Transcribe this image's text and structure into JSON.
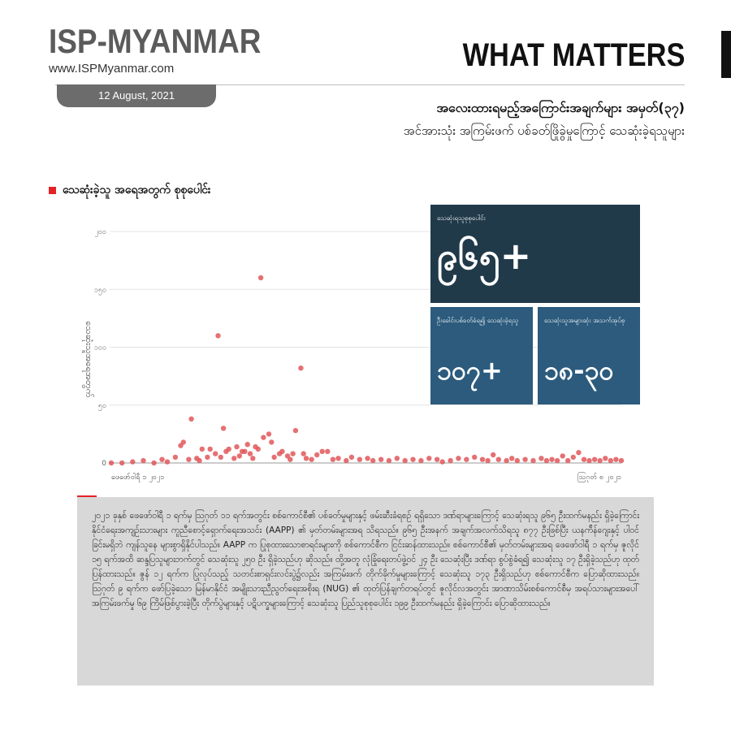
{
  "brand": {
    "name": "ISP-MYANMAR",
    "url": "www.ISPMyanmar.com",
    "date": "12 August, 2021"
  },
  "series_label": "WHAT MATTERS",
  "title": "အလေးထားရမည့်အကြောင်းအချက်များ အမှတ်(၃၇)",
  "subtitle": "အင်အားသုံး အကြမ်းဖက် ပစ်ခတ်ဖြိုခွဲမှုကြောင့် သေဆုံးခဲ့ရသူများ",
  "section_title": "သေဆုံးခဲ့သူ အရေအတွက် စုစုပေါင်း",
  "stats": {
    "total": {
      "label": "သေဆုံးရသူစုစုပေါင်း",
      "value": "၉၆၅+"
    },
    "headshot": {
      "label": "ဦးခေါင်းပစ်ခတ်ခံရ၍ သေဆုံးခဲ့ရသူ",
      "value": "၁၀၇+"
    },
    "age": {
      "label": "သေဆုံးသူအများဆုံး အသက်အုပ်စု",
      "value": "၁၈-၃၀"
    }
  },
  "chart_data": {
    "type": "scatter",
    "ylabel": "သေဆုံးသူအရေအတွက်",
    "ylim": [
      0,
      200
    ],
    "yticks": [
      0,
      50,
      100,
      150,
      200
    ],
    "ytick_labels": [
      "0",
      "၅၀",
      "၁၀၀",
      "၁၅၀",
      "၂၀၀"
    ],
    "xlim": [
      "2021-02-01",
      "2021-08-11"
    ],
    "xtick_labels": [
      "ဖေဖော်ဝါရီ ၁ ၂၀၂၁",
      "ဩဂုတ် ၈ ၂၀၂၁"
    ],
    "color": "#e0575b",
    "points": [
      {
        "x": "2021-02-01",
        "y": 0
      },
      {
        "x": "2021-02-05",
        "y": 0
      },
      {
        "x": "2021-02-09",
        "y": 1
      },
      {
        "x": "2021-02-13",
        "y": 2
      },
      {
        "x": "2021-02-17",
        "y": 0
      },
      {
        "x": "2021-02-20",
        "y": 3
      },
      {
        "x": "2021-02-22",
        "y": 1
      },
      {
        "x": "2021-02-25",
        "y": 5
      },
      {
        "x": "2021-02-27",
        "y": 15
      },
      {
        "x": "2021-02-28",
        "y": 18
      },
      {
        "x": "2021-03-02",
        "y": 3
      },
      {
        "x": "2021-03-03",
        "y": 38
      },
      {
        "x": "2021-03-05",
        "y": 4
      },
      {
        "x": "2021-03-06",
        "y": 2
      },
      {
        "x": "2021-03-07",
        "y": 12
      },
      {
        "x": "2021-03-09",
        "y": 5
      },
      {
        "x": "2021-03-10",
        "y": 12
      },
      {
        "x": "2021-03-12",
        "y": 8
      },
      {
        "x": "2021-03-13",
        "y": 110
      },
      {
        "x": "2021-03-14",
        "y": 5
      },
      {
        "x": "2021-03-15",
        "y": 30
      },
      {
        "x": "2021-03-16",
        "y": 10
      },
      {
        "x": "2021-03-17",
        "y": 12
      },
      {
        "x": "2021-03-19",
        "y": 4
      },
      {
        "x": "2021-03-20",
        "y": 14
      },
      {
        "x": "2021-03-21",
        "y": 6
      },
      {
        "x": "2021-03-22",
        "y": 10
      },
      {
        "x": "2021-03-23",
        "y": 10
      },
      {
        "x": "2021-03-24",
        "y": 16
      },
      {
        "x": "2021-03-25",
        "y": 8
      },
      {
        "x": "2021-03-26",
        "y": 4
      },
      {
        "x": "2021-03-27",
        "y": 14
      },
      {
        "x": "2021-03-28",
        "y": 12
      },
      {
        "x": "2021-03-29",
        "y": 160
      },
      {
        "x": "2021-03-30",
        "y": 22
      },
      {
        "x": "2021-04-01",
        "y": 25
      },
      {
        "x": "2021-04-02",
        "y": 18
      },
      {
        "x": "2021-04-03",
        "y": 5
      },
      {
        "x": "2021-04-05",
        "y": 8
      },
      {
        "x": "2021-04-06",
        "y": 10
      },
      {
        "x": "2021-04-08",
        "y": 6
      },
      {
        "x": "2021-04-09",
        "y": 3
      },
      {
        "x": "2021-04-10",
        "y": 8
      },
      {
        "x": "2021-04-11",
        "y": 28
      },
      {
        "x": "2021-04-13",
        "y": 82
      },
      {
        "x": "2021-04-14",
        "y": 8
      },
      {
        "x": "2021-04-15",
        "y": 4
      },
      {
        "x": "2021-04-17",
        "y": 3
      },
      {
        "x": "2021-04-19",
        "y": 7
      },
      {
        "x": "2021-04-21",
        "y": 10
      },
      {
        "x": "2021-04-23",
        "y": 10
      },
      {
        "x": "2021-04-25",
        "y": 3
      },
      {
        "x": "2021-04-27",
        "y": 4
      },
      {
        "x": "2021-04-30",
        "y": 2
      },
      {
        "x": "2021-05-02",
        "y": 5
      },
      {
        "x": "2021-05-05",
        "y": 3
      },
      {
        "x": "2021-05-08",
        "y": 4
      },
      {
        "x": "2021-05-10",
        "y": 2
      },
      {
        "x": "2021-05-13",
        "y": 3
      },
      {
        "x": "2021-05-16",
        "y": 2
      },
      {
        "x": "2021-05-19",
        "y": 4
      },
      {
        "x": "2021-05-22",
        "y": 2
      },
      {
        "x": "2021-05-25",
        "y": 3
      },
      {
        "x": "2021-05-28",
        "y": 2
      },
      {
        "x": "2021-05-31",
        "y": 4
      },
      {
        "x": "2021-06-03",
        "y": 3
      },
      {
        "x": "2021-06-05",
        "y": 1
      },
      {
        "x": "2021-06-08",
        "y": 2
      },
      {
        "x": "2021-06-11",
        "y": 4
      },
      {
        "x": "2021-06-14",
        "y": 3
      },
      {
        "x": "2021-06-17",
        "y": 5
      },
      {
        "x": "2021-06-20",
        "y": 3
      },
      {
        "x": "2021-06-22",
        "y": 2
      },
      {
        "x": "2021-06-24",
        "y": 7
      },
      {
        "x": "2021-06-26",
        "y": 3
      },
      {
        "x": "2021-06-29",
        "y": 2
      },
      {
        "x": "2021-07-01",
        "y": 4
      },
      {
        "x": "2021-07-03",
        "y": 2
      },
      {
        "x": "2021-07-06",
        "y": 3
      },
      {
        "x": "2021-07-09",
        "y": 2
      },
      {
        "x": "2021-07-12",
        "y": 4
      },
      {
        "x": "2021-07-14",
        "y": 2
      },
      {
        "x": "2021-07-16",
        "y": 3
      },
      {
        "x": "2021-07-18",
        "y": 2
      },
      {
        "x": "2021-07-20",
        "y": 6
      },
      {
        "x": "2021-07-22",
        "y": 2
      },
      {
        "x": "2021-07-24",
        "y": 5
      },
      {
        "x": "2021-07-26",
        "y": 9
      },
      {
        "x": "2021-07-28",
        "y": 3
      },
      {
        "x": "2021-07-30",
        "y": 2
      },
      {
        "x": "2021-08-01",
        "y": 3
      },
      {
        "x": "2021-08-03",
        "y": 2
      },
      {
        "x": "2021-08-05",
        "y": 4
      },
      {
        "x": "2021-08-07",
        "y": 2
      },
      {
        "x": "2021-08-09",
        "y": 3
      },
      {
        "x": "2021-08-11",
        "y": 2
      }
    ]
  },
  "body_text": "၂၀၂၁ ခုနှစ် ဖေဖော်ဝါရီ ၁ ရက်မှ ဩဂုတ် ၁၁ ရက်အတွင်း စစ်ကောင်စီ၏ ပစ်ခတ်မှုများနှင့် ဖမ်းဆီးခံရစဉ် ရရှိသော ဒဏ်ရာများကြောင့် သေဆုံးရသူ ၉၆၅ ဦးထက်မနည်း ရှိခဲ့ကြောင်း နိုင်ငံရေးအကျဉ်းသားများ ကူညီစောင့်ရှောက်ရေးအသင်း (AAPP) ၏ မှတ်တမ်းများအရ သိရသည်။ ၉၆၅ ဦးအနက် အချက်အလက်သိရသူ ၈၇၇ ဦးဖြစ်ပြီး ယနက်ိန်ဂျေးနှင့် ပါဝင်ခြင်းမရှိဘဲ ကျန်သူနေ များစွာရှိနိုင်ပါသည်။ AAPP က ပြုစုထားသောစာရင်းများကို စစ်ကောင်စီက ငြင်းဆန်ထားသည်။ စစ်ကောင်စီ၏ မှတ်တမ်းများအရ ဖေဖော်ဝါရီ ၁ ရက်မှ ဇူလိုင် ၁၅ ရက်အထိ ဆန္ဒပြသူများဘက်တွင် သေဆုံးသူ ၂၅၀ ဦး ရှိခဲ့သည်ဟု ဆိုသည်။ ထို့အတူ လုံခြုံရေးတပ်ဖွဲ့ဝင် ၂၄ ဦး သေဆုံးပြီး ဒဏ်ရာ စွပ်စွဲခံရ၍ သေဆုံးသူ ၁၇ ဦးရှိခဲ့သည်ဟု ထုတ်ပြန်ထားသည်။ ဇွန် ၁၂ ရက်က ပြုလုပ်သည့် သတင်းစာရှင်းလင်းပွဲ၌လည်း အကြမ်းဖက် တိုက်ခိုက်မှုများကြောင့် သေဆုံးသူ ၁၇၃ ဦးရှိသည်ဟု စစ်ကောင်စီက ပြောဆိုထားသည်။ ဩဂုတ် ၉ ရက်က ဖော်ပြခဲ့သော မြန်မာနိုင်ငံ အမျိုးသားညီညွတ်ရေးအစိုးရ (NUG) ၏ ထုတ်ပြန်ချက်တရပ်တွင် ဇူလိုင်လအတွင်း အာဏာသိမ်းစစ်ကောင်စီမှ အရပ်သားများအပေါ် အကြမ်းဖက်မှု ၆၉ ကြိမ်ဖြစ်ပွားခဲ့ပြီး တိုက်ပွဲများနှင့် ပဋိပက္ခများကြောင့် သေဆုံးသူ ပြည်သူစုစုပေါင်း ၁၉၉ ဦးထက်မနည်း ရှိခဲ့ကြောင်း ပြောဆိုထားသည်။"
}
